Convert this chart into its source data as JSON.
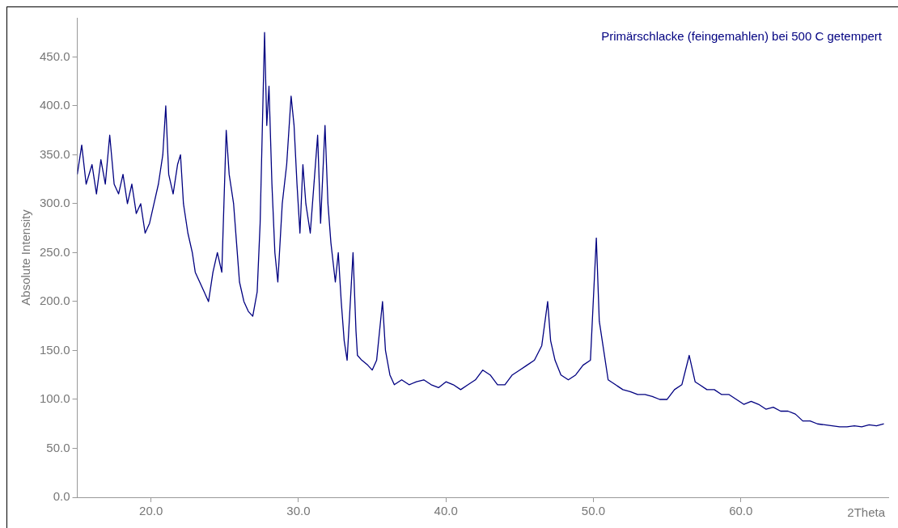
{
  "chart_data": {
    "type": "line",
    "title": "Primärschlacke (feingemahlen) bei 500 C getempert",
    "xlabel": "2Theta",
    "ylabel": "Absolute Intensity",
    "xlim": [
      15,
      70
    ],
    "xticks": [
      {
        "value": 20,
        "label": "20.0"
      },
      {
        "value": 30,
        "label": "30.0"
      },
      {
        "value": 40,
        "label": "40.0"
      },
      {
        "value": 50,
        "label": "50.0"
      },
      {
        "value": 60,
        "label": "60.0"
      }
    ],
    "ylim": [
      0,
      490
    ],
    "yticks": [
      {
        "value": 0,
        "label": "0.0"
      },
      {
        "value": 50,
        "label": "50.0"
      },
      {
        "value": 100,
        "label": "100.0"
      },
      {
        "value": 150,
        "label": "150.0"
      },
      {
        "value": 200,
        "label": "200.0"
      },
      {
        "value": 250,
        "label": "250.0"
      },
      {
        "value": 300,
        "label": "300.0"
      },
      {
        "value": 350,
        "label": "350.0"
      },
      {
        "value": 400,
        "label": "400.0"
      },
      {
        "value": 450,
        "label": "450.0"
      }
    ],
    "grid": false,
    "legend": false,
    "marker": "none",
    "line_style": "solid",
    "series": [
      {
        "color": "#000080",
        "x": [
          15.0,
          15.3,
          15.6,
          16.0,
          16.3,
          16.6,
          16.9,
          17.2,
          17.5,
          17.8,
          18.1,
          18.4,
          18.7,
          19.0,
          19.3,
          19.6,
          19.9,
          20.2,
          20.5,
          20.8,
          21.0,
          21.2,
          21.5,
          21.8,
          22.0,
          22.2,
          22.5,
          22.8,
          23.0,
          23.3,
          23.6,
          23.9,
          24.2,
          24.5,
          24.8,
          25.1,
          25.3,
          25.6,
          25.8,
          26.0,
          26.3,
          26.6,
          26.9,
          27.2,
          27.4,
          27.7,
          27.85,
          28.0,
          28.2,
          28.4,
          28.6,
          28.9,
          29.2,
          29.5,
          29.7,
          29.9,
          30.1,
          30.3,
          30.5,
          30.8,
          31.0,
          31.3,
          31.5,
          31.8,
          32.0,
          32.2,
          32.5,
          32.7,
          32.9,
          33.1,
          33.3,
          33.7,
          33.9,
          34.0,
          34.3,
          34.7,
          35.0,
          35.3,
          35.7,
          35.9,
          36.2,
          36.5,
          37.0,
          37.5,
          38.0,
          38.5,
          39.0,
          39.5,
          40.0,
          40.5,
          41.0,
          41.5,
          42.0,
          42.5,
          43.0,
          43.5,
          44.0,
          44.5,
          45.0,
          45.5,
          46.0,
          46.5,
          46.9,
          47.1,
          47.4,
          47.8,
          48.3,
          48.8,
          49.3,
          49.8,
          50.2,
          50.4,
          50.7,
          51.0,
          51.5,
          52.0,
          52.5,
          53.0,
          53.5,
          54.0,
          54.5,
          55.0,
          55.5,
          56.0,
          56.5,
          56.9,
          57.2,
          57.7,
          58.2,
          58.7,
          59.2,
          59.7,
          60.2,
          60.7,
          61.2,
          61.7,
          62.2,
          62.7,
          63.2,
          63.7,
          64.2,
          64.7,
          65.2,
          65.7,
          66.2,
          66.7,
          67.2,
          67.7,
          68.2,
          68.7,
          69.2,
          69.7
        ],
        "values": [
          330,
          360,
          320,
          340,
          310,
          345,
          320,
          370,
          320,
          310,
          330,
          300,
          320,
          290,
          300,
          270,
          280,
          300,
          320,
          350,
          400,
          330,
          310,
          340,
          350,
          300,
          270,
          250,
          230,
          220,
          210,
          200,
          230,
          250,
          230,
          375,
          330,
          300,
          260,
          220,
          200,
          190,
          185,
          210,
          280,
          475,
          380,
          420,
          320,
          250,
          220,
          300,
          340,
          410,
          380,
          320,
          270,
          340,
          300,
          270,
          310,
          370,
          280,
          380,
          300,
          260,
          220,
          250,
          200,
          160,
          140,
          250,
          170,
          145,
          140,
          135,
          130,
          140,
          200,
          150,
          125,
          115,
          120,
          115,
          118,
          120,
          115,
          112,
          118,
          115,
          110,
          115,
          120,
          130,
          125,
          115,
          115,
          125,
          130,
          135,
          140,
          155,
          200,
          160,
          140,
          125,
          120,
          125,
          135,
          140,
          265,
          180,
          150,
          120,
          115,
          110,
          108,
          105,
          105,
          103,
          100,
          100,
          110,
          115,
          145,
          118,
          115,
          110,
          110,
          105,
          105,
          100,
          95,
          98,
          95,
          90,
          92,
          88,
          88,
          85,
          78,
          78,
          75,
          74,
          73,
          72,
          72,
          73,
          72,
          74,
          73,
          75
        ]
      }
    ]
  }
}
